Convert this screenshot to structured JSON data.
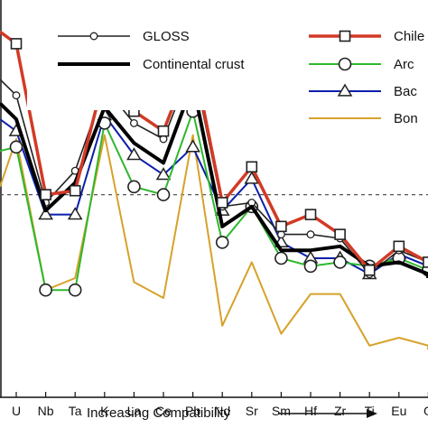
{
  "chart_data": {
    "type": "line",
    "title": "",
    "xlabel": "Increasing Compatibility",
    "ylabel": "",
    "categories": [
      "U",
      "Nb",
      "Ta",
      "K",
      "La",
      "Ce",
      "Pb",
      "Nd",
      "Sr",
      "Sm",
      "Hf",
      "Zr",
      "Ti",
      "Eu",
      "G"
    ],
    "ylim": [
      0,
      500
    ],
    "reference_line": 0.51,
    "grid": false,
    "series": [
      {
        "name": "GLOSS",
        "color": "#222222",
        "marker": "circle-small",
        "width": 1.6,
        "values": [
          0.76,
          0.49,
          0.57,
          0.78,
          0.69,
          0.65,
          0.84,
          0.48,
          0.49,
          0.41,
          0.41,
          0.4,
          0.31,
          0.37,
          0.34
        ],
        "start": 0.8
      },
      {
        "name": "Continental crust",
        "color": "#000000",
        "marker": "none",
        "width": 4,
        "values": [
          0.7,
          0.47,
          0.54,
          0.73,
          0.64,
          0.59,
          0.79,
          0.43,
          0.48,
          0.37,
          0.37,
          0.38,
          0.33,
          0.34,
          0.31
        ],
        "start": 0.74
      },
      {
        "name": "Chile",
        "color": "#d23a26",
        "marker": "square",
        "width": 3.5,
        "values": [
          0.89,
          0.51,
          0.52,
          0.81,
          0.72,
          0.67,
          0.86,
          0.49,
          0.58,
          0.43,
          0.46,
          0.41,
          0.32,
          0.38,
          0.34
        ],
        "start": 0.92
      },
      {
        "name": "Arc",
        "color": "#2eb82e",
        "marker": "circle",
        "width": 2,
        "values": [
          0.63,
          0.27,
          0.27,
          0.69,
          0.53,
          0.51,
          0.72,
          0.39,
          0.48,
          0.35,
          0.33,
          0.34,
          0.33,
          0.35,
          0.32
        ],
        "start": 0.62
      },
      {
        "name": "Bac",
        "color": "#0a1eaa",
        "marker": "triangle",
        "width": 2,
        "values": [
          0.67,
          0.46,
          0.46,
          0.71,
          0.61,
          0.56,
          0.63,
          0.47,
          0.55,
          0.39,
          0.35,
          0.35,
          0.31,
          0.36,
          0.33
        ],
        "start": 0.7
      },
      {
        "name": "Bon",
        "color": "#d6a22a",
        "marker": "none",
        "width": 2,
        "values": [
          0.65,
          0.27,
          0.3,
          0.66,
          0.29,
          0.25,
          0.66,
          0.18,
          0.34,
          0.16,
          0.26,
          0.26,
          0.13,
          0.15,
          0.13
        ],
        "start": 0.53
      }
    ],
    "legend_position": "top",
    "x_arrow": true
  }
}
